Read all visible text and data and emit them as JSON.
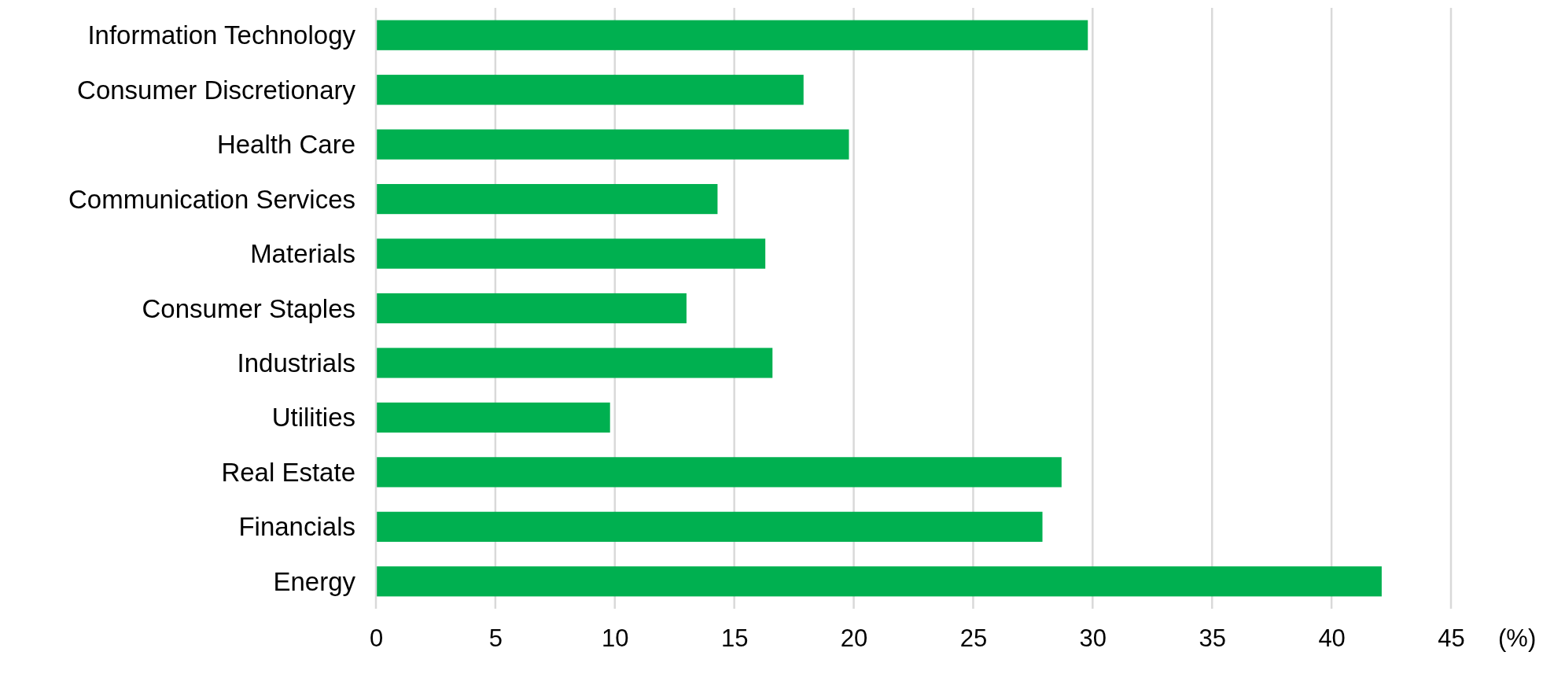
{
  "chart_data": {
    "type": "bar",
    "orientation": "horizontal",
    "xlabel": "(%)",
    "categories": [
      "Information Technology",
      "Consumer Discretionary",
      "Health Care",
      "Communication Services",
      "Materials",
      "Consumer Staples",
      "Industrials",
      "Utilities",
      "Real Estate",
      "Financials",
      "Energy"
    ],
    "values": [
      29.8,
      17.9,
      19.8,
      14.3,
      16.3,
      13.0,
      16.6,
      9.8,
      28.7,
      27.9,
      42.1
    ],
    "color": "#00b050",
    "xlim": [
      0,
      45
    ],
    "xticks": [
      0,
      5,
      10,
      15,
      20,
      25,
      30,
      35,
      40,
      45
    ],
    "grid": "x"
  }
}
